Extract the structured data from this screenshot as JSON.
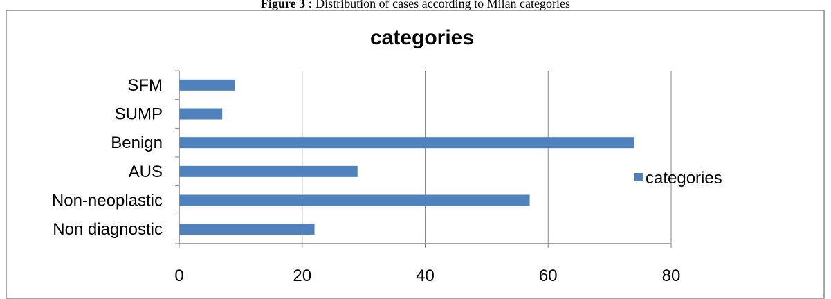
{
  "figure_caption": {
    "prefix": "Figure 3 :",
    "text": "Distribution of cases according to Milan categories"
  },
  "chart_data": {
    "type": "bar",
    "orientation": "horizontal",
    "title": "categories",
    "categories": [
      "Non diagnostic",
      "Non-neoplastic",
      "AUS",
      "Benign",
      "SUMP",
      "SFM"
    ],
    "series": [
      {
        "name": "categories",
        "values": [
          22,
          57,
          29,
          74,
          7,
          9
        ],
        "color": "#4F81BD"
      }
    ],
    "xlim": [
      0,
      80
    ],
    "ticks": [
      "0",
      "20",
      "40",
      "60",
      "80"
    ],
    "grid": true,
    "legend_position": "right"
  },
  "colors": {
    "bar": "#4F81BD",
    "grid": "#868686",
    "axis": "#868686",
    "border": "#868686"
  }
}
